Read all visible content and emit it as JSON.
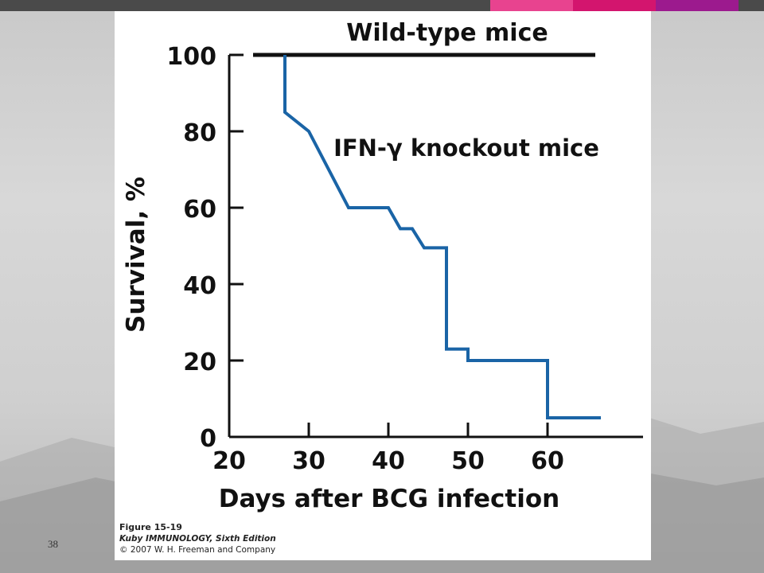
{
  "slide": {
    "number": "38",
    "topbar_colors": [
      "#4a4a4a",
      "#e8438f",
      "#d3156e",
      "#9c1a8e",
      "#4a4a4a"
    ]
  },
  "caption": {
    "figure": "Figure 15-19",
    "book": "Kuby IMMUNOLOGY, Sixth Edition",
    "copyright": "© 2007 W. H. Freeman and Company"
  },
  "chart_data": {
    "type": "line",
    "step": true,
    "title": "",
    "xlabel": "Days after BCG infection",
    "ylabel": "Survival, %",
    "xlim": [
      20,
      72
    ],
    "ylim": [
      0,
      100
    ],
    "x_ticks": [
      20,
      30,
      40,
      50,
      60
    ],
    "y_ticks": [
      0,
      20,
      40,
      60,
      80,
      100
    ],
    "grid": false,
    "series": [
      {
        "name": "Wild-type mice",
        "color": "#111111",
        "x": [
          23,
          66
        ],
        "y": [
          100,
          100
        ]
      },
      {
        "name": "IFN-γ knockout mice",
        "color": "#1a64a6",
        "x": [
          27,
          27,
          30,
          35,
          40,
          41.5,
          43,
          44.5,
          47.3,
          47.3,
          50,
          50,
          60,
          60,
          66.7
        ],
        "y": [
          100,
          85,
          80,
          60,
          60,
          54.5,
          54.5,
          49.5,
          49.5,
          23,
          23,
          20,
          20,
          5,
          5
        ]
      }
    ]
  }
}
